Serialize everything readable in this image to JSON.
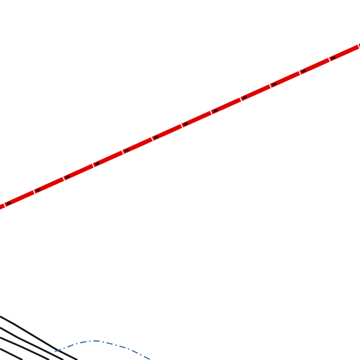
{
  "map": {
    "background_color": "#ffffff",
    "features": {
      "railway_main": {
        "kind": "railway",
        "style": "red-line-with-black-dashes",
        "casing_color": "#e00000",
        "dash_color": "#111111"
      },
      "roads": {
        "kind": "road",
        "style": "solid",
        "color": "#111111",
        "count": 4
      },
      "waterway": {
        "kind": "stream",
        "style": "dash-dot",
        "color": "#1f5fa8"
      }
    }
  }
}
